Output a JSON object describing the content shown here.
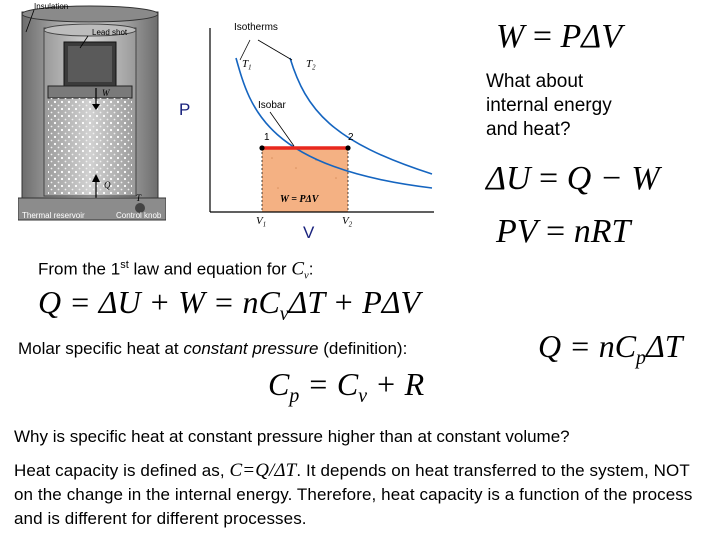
{
  "figure": {
    "cylinder_labels": {
      "insulation": "Insulation",
      "lead_shot": "Lead shot",
      "work": "W",
      "heat": "Q",
      "temperature": "T",
      "thermal_reservoir": "Thermal reservoir",
      "control_knob": "Control knob"
    },
    "pv_diagram": {
      "isotherms": "Isotherms",
      "t1": "T",
      "t1_sub": "1",
      "t2": "T",
      "t2_sub": "2",
      "isobar": "Isobar",
      "point1": "1",
      "point2": "2",
      "work_label": "W = PΔV",
      "v1": "V",
      "v1_sub": "1",
      "v2": "V",
      "v2_sub": "2"
    },
    "axis_p": "P",
    "axis_v": "V"
  },
  "equations": {
    "work": {
      "lhs": "W",
      "eq": " = ",
      "rhs": "PΔV"
    },
    "first_law": {
      "lhs": "ΔU",
      "eq": " = ",
      "rhs": "Q − W"
    },
    "ideal_gas": {
      "lhs": "PV",
      "eq": " = ",
      "rhs": "nRT"
    },
    "q_expansion": "Q = ΔU + W = nC",
    "q_expansion_sub": "v",
    "q_expansion_tail": "ΔT + PΔV",
    "q_cp": "Q = nC",
    "q_cp_sub": "p",
    "q_cp_tail": "ΔT",
    "cp_lhs": "C",
    "cp_lhs_sub": "p",
    "cp_mid": " = C",
    "cp_mid_sub": "v",
    "cp_tail": " + R"
  },
  "text": {
    "question": "What about internal energy and heat?",
    "first_law_prefix": "From the 1",
    "first_law_sup": "st",
    "first_law_mid": " law and equation for ",
    "cv_symbol": "C",
    "cv_sub": "v",
    "first_law_end": ":",
    "molar_prefix": "Molar specific heat at ",
    "molar_italic": "constant pressure",
    "molar_suffix": " (definition):",
    "why": "Why is specific heat at constant pressure higher than at constant volume?",
    "heat_cap_prefix": "Heat capacity is defined as, ",
    "heat_cap_formula": "C=Q/ΔT",
    "heat_cap_rest": ". It depends on heat transferred to the system, NOT on the change in the internal energy. Therefore, heat capacity is a function of the process and is different for different processes."
  },
  "colors": {
    "isobar_line": "#e8281e",
    "work_fill": "#f4b183",
    "isotherm_curve": "#1565c0",
    "axis_letter": "#1a237e"
  }
}
